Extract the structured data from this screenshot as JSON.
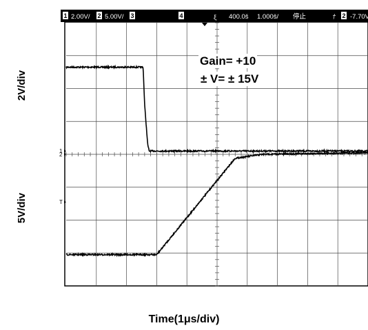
{
  "chart_data": {
    "type": "line",
    "title": "",
    "xlabel": "Time(1μs/div)",
    "ylabels": [
      "2V/div",
      "5V/div"
    ],
    "x_divisions": 10,
    "y_divisions": 8,
    "xlim": [
      0,
      10
    ],
    "ylim": [
      0,
      8
    ],
    "grid": true,
    "header": {
      "items": [
        "2.00V/",
        "5.00V/",
        "",
        "",
        "400.0š",
        "1.000š/",
        "停止",
        "-7.70V"
      ],
      "channel_numbers": [
        "1",
        "2",
        "3",
        "4",
        "2"
      ],
      "trigger_symbols": [
        "ξ",
        "†"
      ]
    },
    "annotations": [
      "Gain= +10",
      "± V= ± 15V"
    ],
    "channel_markers": [
      "1",
      "2",
      "T"
    ],
    "series": [
      {
        "x": [
          0,
          2.55,
          2.6,
          2.7,
          2.75,
          10
        ],
        "y": [
          6.65,
          6.65,
          5.5,
          4.3,
          4.1,
          4.1
        ]
      },
      {
        "x": [
          0,
          3.0,
          5.6,
          6.5,
          10
        ],
        "y": [
          0.95,
          0.95,
          3.88,
          4.0,
          4.05
        ]
      }
    ],
    "colors": {
      "trace": "#000000",
      "grid": "#4a4a4a",
      "header_bg": "#000000"
    }
  }
}
